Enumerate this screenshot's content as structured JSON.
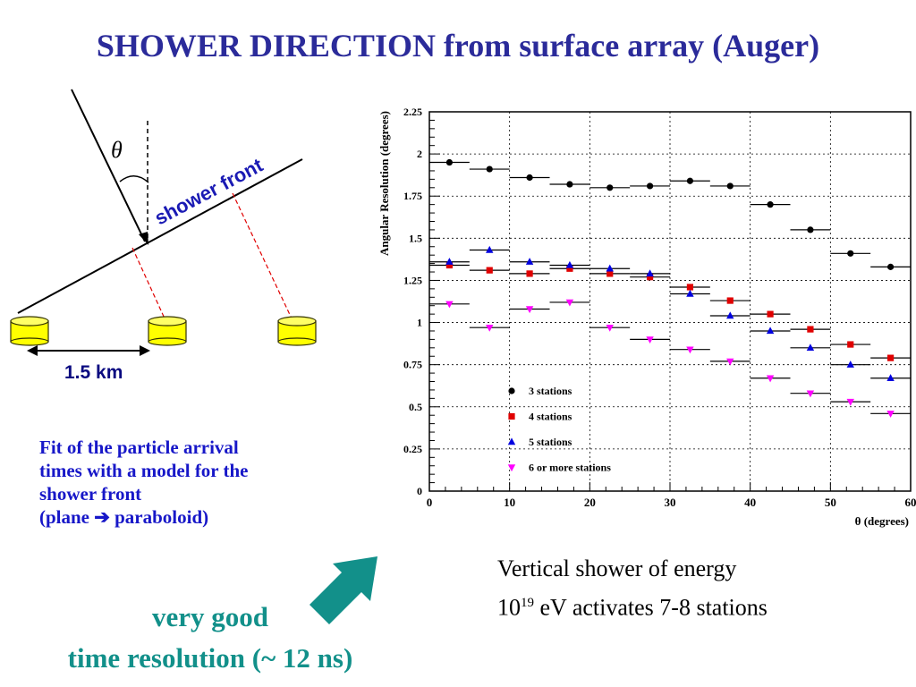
{
  "title": "SHOWER DIRECTION from surface array (Auger)",
  "diagram": {
    "theta_label": "θ",
    "shower_front_label": "shower front",
    "distance_label": "1.5 km"
  },
  "fit_text": {
    "line1": "Fit of the particle arrival",
    "line2": "times with a model for the",
    "line3": "shower front",
    "line4_pre": "(plane ",
    "line4_arrow": "➔",
    "line4_post": " paraboloid)"
  },
  "conclusion": {
    "line1": "very good",
    "line2": "time resolution (~ 12 ns)"
  },
  "vertical_note": {
    "line1": "Vertical shower of energy",
    "base": "10",
    "exp": "19",
    "rest": " eV activates 7-8 stations"
  },
  "colors": {
    "title": "#2b2b9a",
    "fit_text": "#1717c8",
    "conclusion": "#12908a",
    "arrow": "#12908a",
    "station_fill": "#ffff00",
    "station_stroke": "#333300",
    "series_3": "#000000",
    "series_4": "#e00000",
    "series_5": "#0000e0",
    "series_6": "#ff00ff"
  },
  "chart_data": {
    "type": "scatter",
    "title": "",
    "xlabel": "θ (degrees)",
    "ylabel": "Angular Resolution (degrees)",
    "xlim": [
      0,
      60
    ],
    "ylim": [
      0,
      2.25
    ],
    "xticks": [
      "0",
      "10",
      "20",
      "30",
      "40",
      "50",
      "60"
    ],
    "yticks": [
      "0",
      "0.25",
      "0.5",
      "0.75",
      "1",
      "1.25",
      "1.5",
      "1.75",
      "2",
      "2.25"
    ],
    "grid": true,
    "legend_position": "lower-left",
    "x": [
      2.5,
      7.5,
      12.5,
      17.5,
      22.5,
      27.5,
      32.5,
      37.5,
      42.5,
      47.5,
      52.5,
      57.5
    ],
    "series": [
      {
        "name": "3 stations",
        "marker": "circle",
        "values": [
          1.95,
          1.91,
          1.86,
          1.82,
          1.8,
          1.81,
          1.84,
          1.81,
          1.7,
          1.55,
          1.41,
          1.33
        ]
      },
      {
        "name": "4 stations",
        "marker": "square",
        "values": [
          1.34,
          1.31,
          1.29,
          1.32,
          1.29,
          1.27,
          1.21,
          1.13,
          1.05,
          0.96,
          0.87,
          0.79
        ]
      },
      {
        "name": "5 stations",
        "marker": "triangle-up",
        "values": [
          1.36,
          1.43,
          1.36,
          1.34,
          1.32,
          1.29,
          1.17,
          1.04,
          0.95,
          0.85,
          0.75,
          0.67
        ]
      },
      {
        "name": "6 or more stations",
        "marker": "triangle-down",
        "values": [
          1.11,
          0.97,
          1.08,
          1.12,
          0.97,
          0.9,
          0.84,
          0.77,
          0.67,
          0.58,
          0.53,
          0.46
        ]
      }
    ]
  }
}
